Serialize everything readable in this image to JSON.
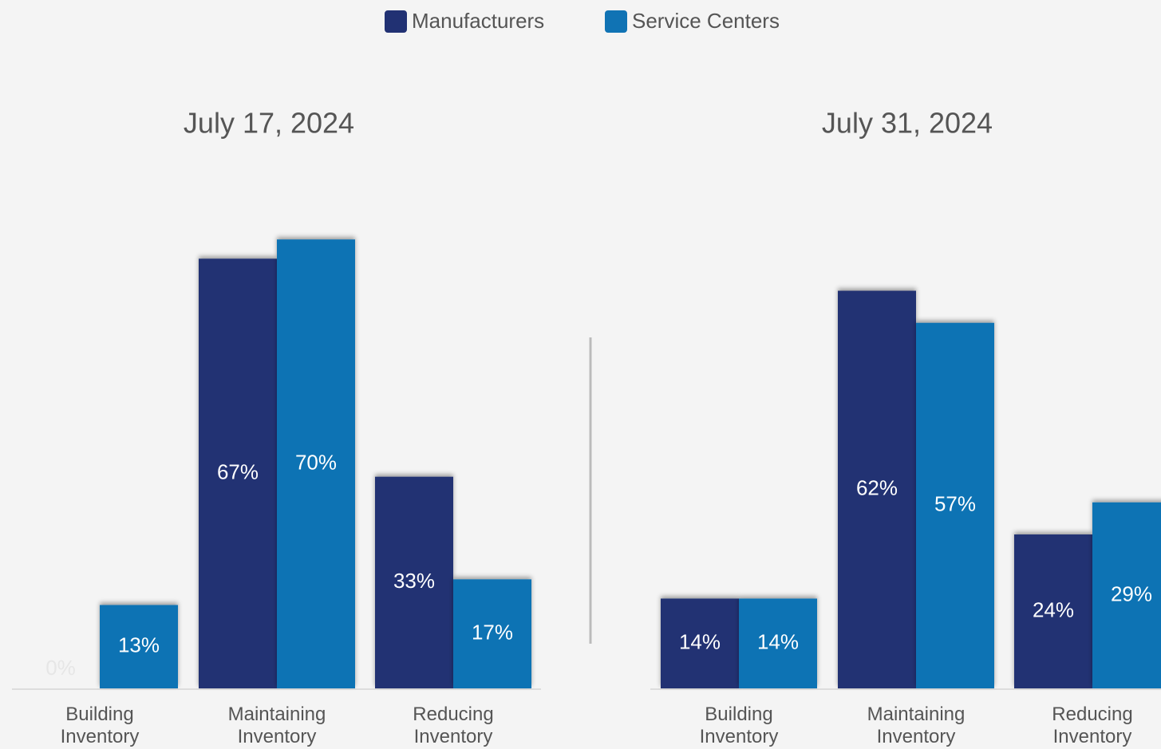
{
  "chart_data": [
    {
      "type": "bar",
      "title": "July 17, 2024",
      "categories": [
        "Building Inventory",
        "Maintaining Inventory",
        "Reducing Inventory"
      ],
      "series": [
        {
          "name": "Manufacturers",
          "color": "#213173",
          "values": [
            0,
            67,
            33
          ],
          "value_labels": [
            "0%",
            "67%",
            "33%"
          ]
        },
        {
          "name": "Service Centers",
          "color": "#1073b4",
          "values": [
            13,
            70,
            17
          ],
          "value_labels": [
            "13%",
            "70%",
            "17%"
          ]
        }
      ]
    },
    {
      "type": "bar",
      "title": "July 31, 2024",
      "categories": [
        "Building Inventory",
        "Maintaining Inventory",
        "Reducing Inventory"
      ],
      "series": [
        {
          "color": "#213173",
          "values": [
            14,
            62,
            24
          ],
          "value_labels": [
            "14%",
            "62%",
            "24%"
          ]
        },
        {
          "color": "#1073b4",
          "values": [
            14,
            57,
            29
          ],
          "value_labels": [
            "14%",
            "57%",
            "29%"
          ]
        }
      ]
    }
  ]
}
